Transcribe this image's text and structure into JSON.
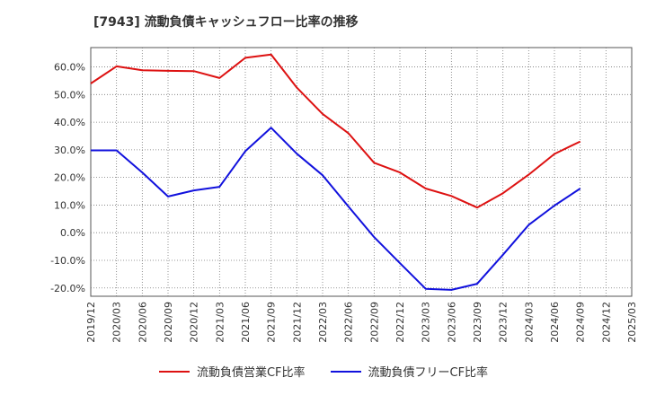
{
  "chart_data": {
    "type": "line",
    "title": "[7943]  流動負債キャッシュフロー比率の推移",
    "xlabel": "",
    "ylabel": "",
    "ylim": [
      -23,
      67
    ],
    "yticks": [
      -20,
      -10,
      0,
      10,
      20,
      30,
      40,
      50,
      60
    ],
    "ytick_labels": [
      "-20.0%",
      "-10.0%",
      "0.0%",
      "10.0%",
      "20.0%",
      "30.0%",
      "40.0%",
      "50.0%",
      "60.0%"
    ],
    "categories": [
      "2019/12",
      "2020/03",
      "2020/06",
      "2020/09",
      "2020/12",
      "2021/03",
      "2021/06",
      "2021/09",
      "2021/12",
      "2022/03",
      "2022/06",
      "2022/09",
      "2022/12",
      "2023/03",
      "2023/06",
      "2023/09",
      "2023/12",
      "2024/03",
      "2024/06",
      "2024/09",
      "2024/12",
      "2025/03"
    ],
    "grid": true,
    "legend_position": "bottom",
    "series": [
      {
        "name": "流動負債営業CF比率",
        "color": "#dd1111",
        "values": [
          54.0,
          60.2,
          58.8,
          58.6,
          58.5,
          56.0,
          63.3,
          64.5,
          52.5,
          43.0,
          36.0,
          25.3,
          21.8,
          16.0,
          13.3,
          9.1,
          14.3,
          21.0,
          28.5,
          33.0,
          null,
          null
        ]
      },
      {
        "name": "流動負債フリーCF比率",
        "color": "#1111dd",
        "values": [
          29.8,
          29.8,
          21.8,
          13.1,
          15.3,
          16.6,
          29.5,
          38.0,
          28.6,
          20.8,
          9.5,
          -1.6,
          -11.0,
          -20.3,
          -20.7,
          -18.5,
          -8.0,
          2.8,
          9.8,
          16.0,
          null,
          null
        ]
      }
    ]
  }
}
